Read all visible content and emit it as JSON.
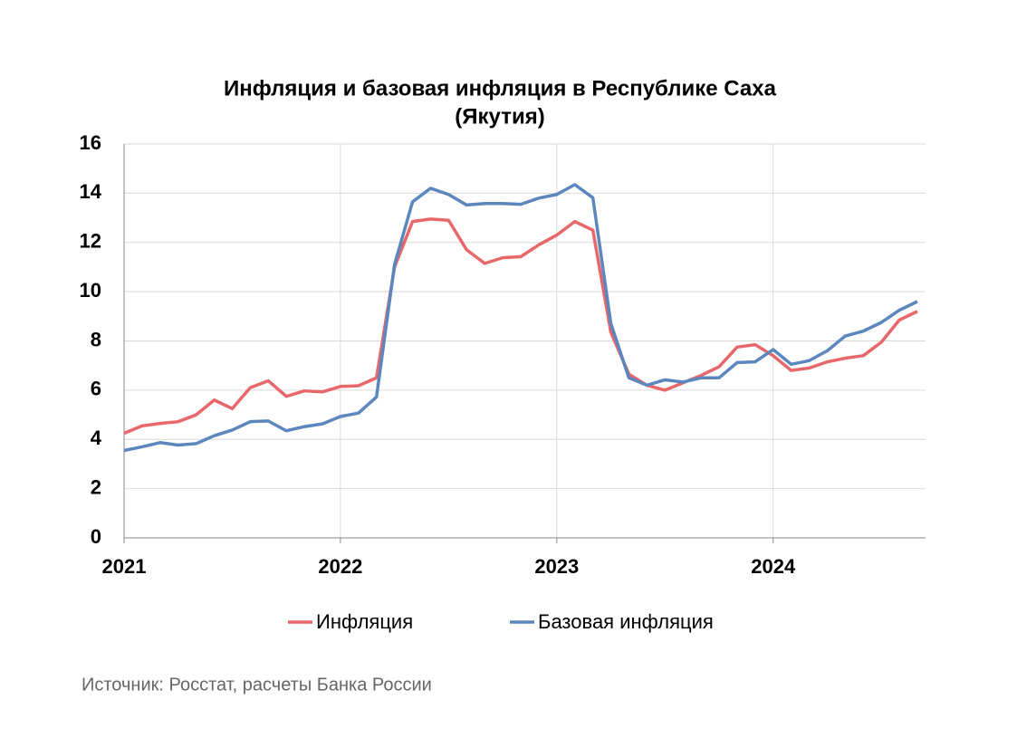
{
  "chart_data": {
    "type": "line",
    "title": [
      "Инфляция и базовая инфляция в Республике Саха",
      "(Якутия)"
    ],
    "categories": [
      "2021",
      null,
      null,
      null,
      null,
      null,
      null,
      null,
      null,
      null,
      null,
      null,
      "2022",
      null,
      null,
      null,
      null,
      null,
      null,
      null,
      null,
      null,
      null,
      null,
      "2023",
      null,
      null,
      null,
      null,
      null,
      null,
      null,
      null,
      null,
      null,
      null,
      "2024",
      null,
      null,
      null,
      null,
      null,
      null,
      null,
      null
    ],
    "series": [
      {
        "name": "Инфляция",
        "color": "#e8676b",
        "values": [
          4.25,
          4.55,
          4.65,
          4.72,
          5.0,
          5.6,
          5.25,
          6.1,
          6.38,
          5.75,
          5.97,
          5.93,
          6.15,
          6.18,
          6.5,
          11.0,
          12.85,
          12.95,
          12.9,
          11.7,
          11.15,
          11.38,
          11.42,
          11.9,
          12.3,
          12.85,
          12.5,
          8.35,
          6.65,
          6.2,
          6.0,
          6.3,
          6.6,
          6.95,
          7.75,
          7.85,
          7.4,
          6.8,
          6.9,
          7.15,
          7.3,
          7.4,
          7.95,
          8.85,
          9.2
        ]
      },
      {
        "name": "Базовая инфляция",
        "color": "#5b87be",
        "values": [
          3.55,
          3.7,
          3.87,
          3.77,
          3.83,
          4.15,
          4.38,
          4.72,
          4.75,
          4.35,
          4.52,
          4.63,
          4.93,
          5.07,
          5.72,
          11.1,
          13.65,
          14.2,
          13.95,
          13.52,
          13.58,
          13.58,
          13.55,
          13.8,
          13.95,
          14.35,
          13.82,
          8.7,
          6.5,
          6.2,
          6.42,
          6.33,
          6.5,
          6.5,
          7.12,
          7.15,
          7.65,
          7.05,
          7.2,
          7.6,
          8.2,
          8.4,
          8.75,
          9.25,
          9.6
        ]
      }
    ],
    "ylim": [
      0,
      16
    ],
    "yticks": [
      0,
      2,
      4,
      6,
      8,
      10,
      12,
      14,
      16
    ],
    "grid": true,
    "legend": "bottom",
    "source": "Источник: Росстат, расчеты Банка России"
  }
}
